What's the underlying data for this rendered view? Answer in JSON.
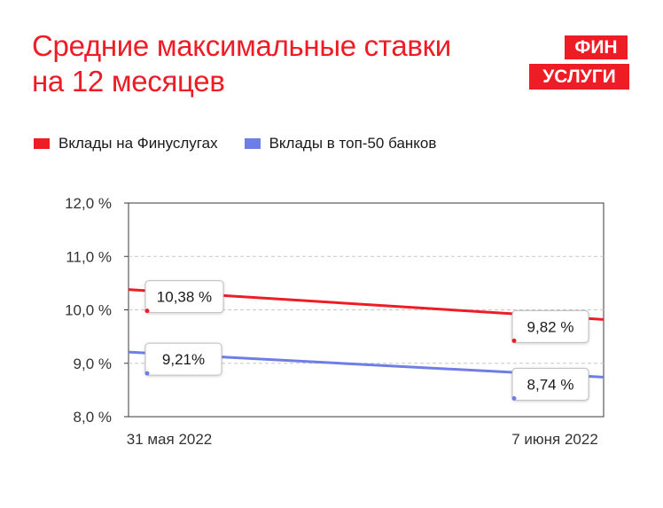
{
  "title": {
    "line1": "Средние максимальные ставки",
    "line2": "на 12 месяцев"
  },
  "logo": {
    "line1": "ФИН",
    "line2": "УСЛУГИ"
  },
  "colors": {
    "accent": "#ee1c25",
    "series_finuslugi": "#ee1c25",
    "series_top50": "#6f7ee6"
  },
  "chart_data": {
    "type": "line",
    "title": "Средние максимальные ставки на 12 месяцев",
    "x": [
      "31 мая 2022",
      "7 июня 2022"
    ],
    "ylim": [
      8.0,
      12.0
    ],
    "yticks": [
      {
        "value": 12.0,
        "label": "12,0 %"
      },
      {
        "value": 11.0,
        "label": "11,0 %"
      },
      {
        "value": 10.0,
        "label": "10,0 %"
      },
      {
        "value": 9.0,
        "label": "9,0 %"
      },
      {
        "value": 8.0,
        "label": "8,0 %"
      }
    ],
    "grid": true,
    "legend_position": "top-left",
    "series": [
      {
        "name": "Вклады на Финуслугах",
        "color": "#ee1c25",
        "values": [
          10.38,
          9.82
        ],
        "labels": [
          "10,38 %",
          "9,82 %"
        ]
      },
      {
        "name": "Вклады в топ-50 банков",
        "color": "#6f7ee6",
        "values": [
          9.21,
          8.74
        ],
        "labels": [
          "9,21%",
          "8,74 %"
        ]
      }
    ]
  }
}
